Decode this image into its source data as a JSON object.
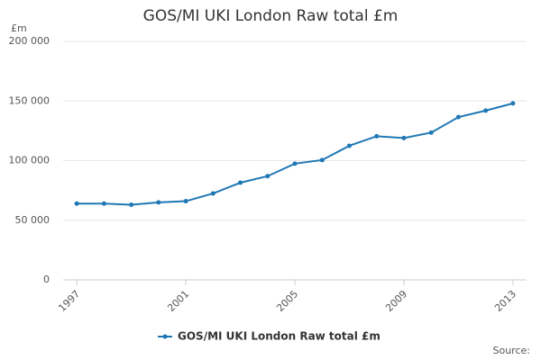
{
  "chart_data": {
    "type": "line",
    "title": "GOS/MI UKI London Raw total £m",
    "y_axis_label": "£m",
    "x": [
      1997,
      1998,
      1999,
      2000,
      2001,
      2002,
      2003,
      2004,
      2005,
      2006,
      2007,
      2008,
      2009,
      2010,
      2011,
      2012,
      2013
    ],
    "series": [
      {
        "name": "GOS/MI UKI London Raw total £m",
        "color": "#1f78b4",
        "values": [
          64000,
          64000,
          63000,
          65000,
          66000,
          72500,
          81500,
          87000,
          97500,
          100500,
          112500,
          120500,
          119000,
          123500,
          136500,
          142000,
          148000
        ]
      }
    ],
    "xlim": [
      1996.5,
      2013.5
    ],
    "xticks": [
      1997,
      2001,
      2005,
      2009,
      2013
    ],
    "ylim": [
      0,
      200000
    ],
    "yticks": [
      0,
      {
        "value": 50000,
        "label": "50 000"
      },
      {
        "value": 100000,
        "label": "100 000"
      },
      {
        "value": 150000,
        "label": "150 000"
      },
      {
        "value": 200000,
        "label": "200 000"
      }
    ],
    "grid": true,
    "legend": "bottom",
    "source": "Source:"
  }
}
